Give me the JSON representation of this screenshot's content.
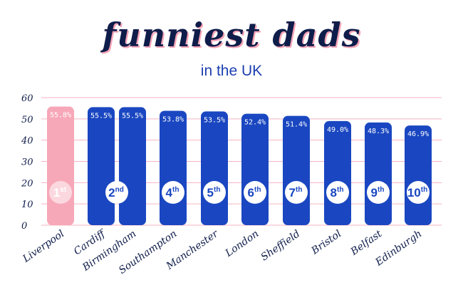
{
  "header": {
    "title": "funniest dads",
    "subtitle": "in the UK"
  },
  "colors": {
    "bar_primary": "#1a47c1",
    "bar_highlight": "#f7a8b8",
    "grid": "#f4b3c2",
    "text": "#0f1d4a"
  },
  "chart_data": {
    "type": "bar",
    "title": "funniest dads",
    "subtitle": "in the UK",
    "xlabel": "",
    "ylabel": "",
    "ylim": [
      0,
      60
    ],
    "yticks": [
      0,
      10,
      20,
      30,
      40,
      50,
      60
    ],
    "grid": true,
    "categories": [
      "Liverpool",
      "Cardiff",
      "Birmingham",
      "Southampton",
      "Manchester",
      "London",
      "Sheffield",
      "Bristol",
      "Belfast",
      "Edinburgh"
    ],
    "values": [
      55.8,
      55.5,
      55.5,
      53.8,
      53.5,
      52.4,
      51.4,
      49.0,
      48.3,
      46.9
    ],
    "value_labels": [
      "55.8%",
      "55.5%",
      "55.5%",
      "53.8%",
      "53.5%",
      "52.4%",
      "51.4%",
      "49.0%",
      "48.3%",
      "46.9%"
    ],
    "ranks": [
      {
        "num": "1",
        "suffix": "st"
      },
      {
        "num": "2",
        "suffix": "nd"
      },
      {
        "num": "4",
        "suffix": "th"
      },
      {
        "num": "5",
        "suffix": "th"
      },
      {
        "num": "6",
        "suffix": "th"
      },
      {
        "num": "7",
        "suffix": "th"
      },
      {
        "num": "8",
        "suffix": "th"
      },
      {
        "num": "9",
        "suffix": "th"
      },
      {
        "num": "10",
        "suffix": "th"
      }
    ]
  }
}
